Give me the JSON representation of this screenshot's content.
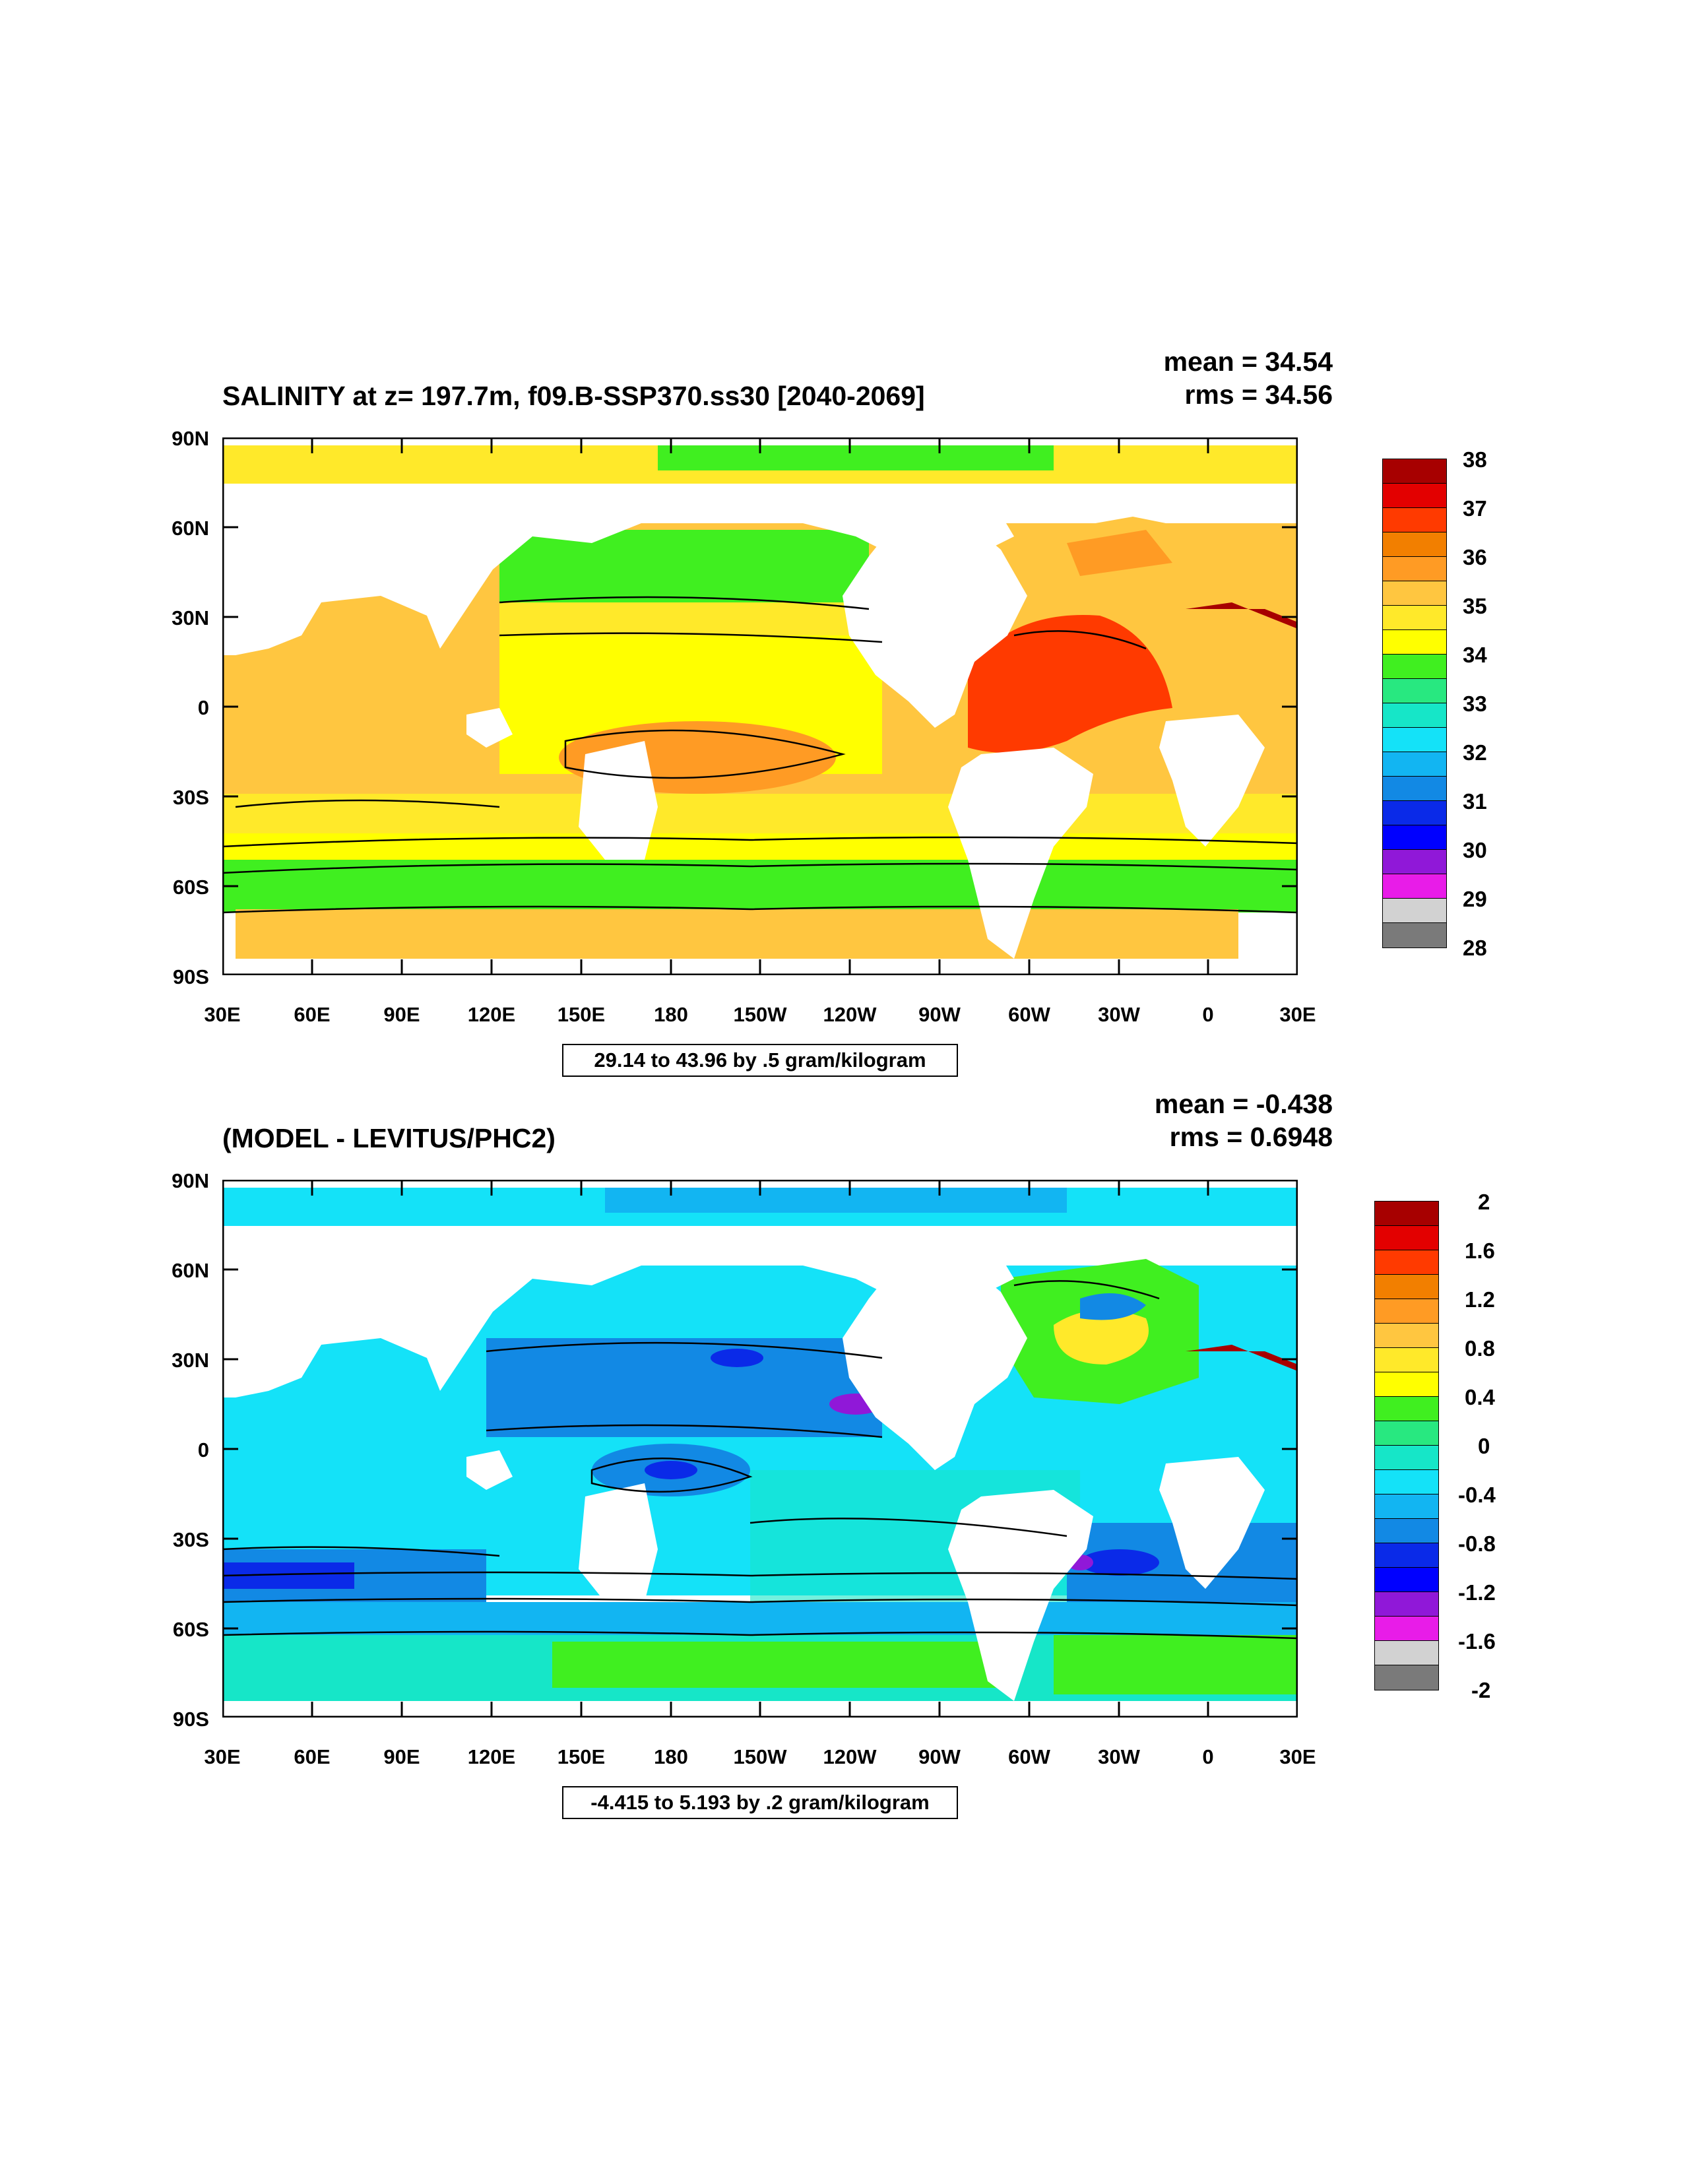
{
  "panels": [
    {
      "title": "SALINITY at z= 197.7m, f09.B-SSP370.ss30 [2040-2069]",
      "mean": "mean = 34.54",
      "rms": "rms = 34.56",
      "range_label": "29.14 to 43.96 by .5 gram/kilogram",
      "lat_labels": [
        "90N",
        "60N",
        "30N",
        "0",
        "30S",
        "60S",
        "90S"
      ],
      "lon_labels": [
        "30E",
        "60E",
        "90E",
        "120E",
        "150E",
        "180",
        "150W",
        "120W",
        "90W",
        "60W",
        "30W",
        "0",
        "30E"
      ],
      "colorbar_labels": [
        "38",
        "37",
        "36",
        "35",
        "34",
        "33",
        "32",
        "31",
        "30",
        "29",
        "28"
      ],
      "colorbar_colors": [
        "#a70000",
        "#e30000",
        "#ff3a00",
        "#f27f00",
        "#ff9b24",
        "#ffc640",
        "#ffe92a",
        "#ffff00",
        "#40ef20",
        "#28e880",
        "#16e6c8",
        "#14e2f8",
        "#12b5f2",
        "#1289e4",
        "#0a2ae8",
        "#0000ff",
        "#9018d8",
        "#e81ce8",
        "#d2d2d2",
        "#7a7a7a"
      ],
      "map_colors": {
        "ocean_low": "#40ef20",
        "ocean_mid": "#ffe92a",
        "ocean_high": "#ffc640",
        "high_core": "#ff9b24",
        "max": "#ff3a00",
        "peak": "#a70000",
        "cyan": "#16e6c8"
      }
    },
    {
      "title": "(MODEL - LEVITUS/PHC2)",
      "mean": "mean = -0.438",
      "rms": "rms = 0.6948",
      "range_label": "-4.415 to 5.193 by .2 gram/kilogram",
      "lat_labels": [
        "90N",
        "60N",
        "30N",
        "0",
        "30S",
        "60S",
        "90S"
      ],
      "lon_labels": [
        "30E",
        "60E",
        "90E",
        "120E",
        "150E",
        "180",
        "150W",
        "120W",
        "90W",
        "60W",
        "30W",
        "0",
        "30E"
      ],
      "colorbar_labels": [
        "2",
        "1.6",
        "1.2",
        "0.8",
        "0.4",
        "0",
        "-0.4",
        "-0.8",
        "-1.2",
        "-1.6",
        "-2"
      ],
      "colorbar_colors": [
        "#a70000",
        "#e30000",
        "#ff3a00",
        "#f27f00",
        "#ff9b24",
        "#ffc640",
        "#ffe92a",
        "#ffff00",
        "#40ef20",
        "#28e880",
        "#16e6c8",
        "#14e2f8",
        "#12b5f2",
        "#1289e4",
        "#0a2ae8",
        "#0000ff",
        "#9018d8",
        "#e81ce8",
        "#d2d2d2",
        "#7a7a7a"
      ],
      "map_colors": {
        "ocean_low": "#14e2f8",
        "ocean_mid": "#12b5f2",
        "ocean_high": "#1289e4",
        "deep": "#0a2ae8",
        "min": "#9018d8",
        "green": "#40ef20",
        "yellow": "#ffe92a",
        "peak": "#a70000"
      }
    }
  ],
  "land_color": "#ffffff"
}
